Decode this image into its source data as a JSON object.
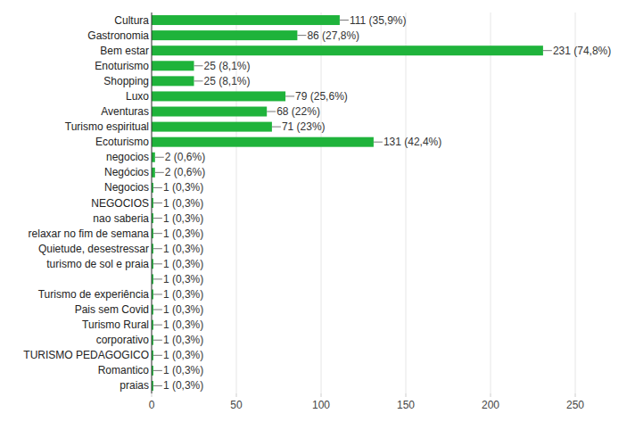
{
  "chart_data": {
    "type": "bar",
    "orientation": "horizontal",
    "categories": [
      "Cultura",
      "Gastronomia",
      "Bem estar",
      "Enoturismo",
      "Shopping",
      "Luxo",
      "Aventuras",
      "Turismo espiritual",
      "Ecoturismo",
      "negocios",
      "Negócios",
      "Negocios",
      "NEGOCIOS",
      "nao saberia",
      "relaxar no fim de semana",
      "Quietude, desestressar",
      "turismo de sol e praia",
      null,
      "Turismo de experiência",
      "Pais sem Covid",
      "Turismo Rural",
      "corporativo",
      "TURISMO PEDAGOGICO",
      "Romantico",
      "praias"
    ],
    "values": [
      111,
      86,
      231,
      25,
      25,
      79,
      68,
      71,
      131,
      2,
      2,
      1,
      1,
      1,
      1,
      1,
      1,
      1,
      1,
      1,
      1,
      1,
      1,
      1,
      1
    ],
    "value_labels": [
      "111 (35,9%)",
      "86 (27,8%)",
      "231 (74,8%)",
      "25 (8,1%)",
      "25 (8,1%)",
      "79 (25,6%)",
      "68 (22%)",
      "71 (23%)",
      "131 (42,4%)",
      "2 (0,6%)",
      "2 (0,6%)",
      "1 (0,3%)",
      "1 (0,3%)",
      "1 (0,3%)",
      "1 (0,3%)",
      "1 (0,3%)",
      "1 (0,3%)",
      "1 (0,3%)",
      "1 (0,3%)",
      "1 (0,3%)",
      "1 (0,3%)",
      "1 (0,3%)",
      "1 (0,3%)",
      "1 (0,3%)",
      "1 (0,3%)"
    ],
    "color": "#1fb33b",
    "xlim": [
      0,
      250
    ],
    "xticks": [
      0,
      50,
      100,
      150,
      200,
      250
    ],
    "grid": true,
    "data_labels": true
  }
}
